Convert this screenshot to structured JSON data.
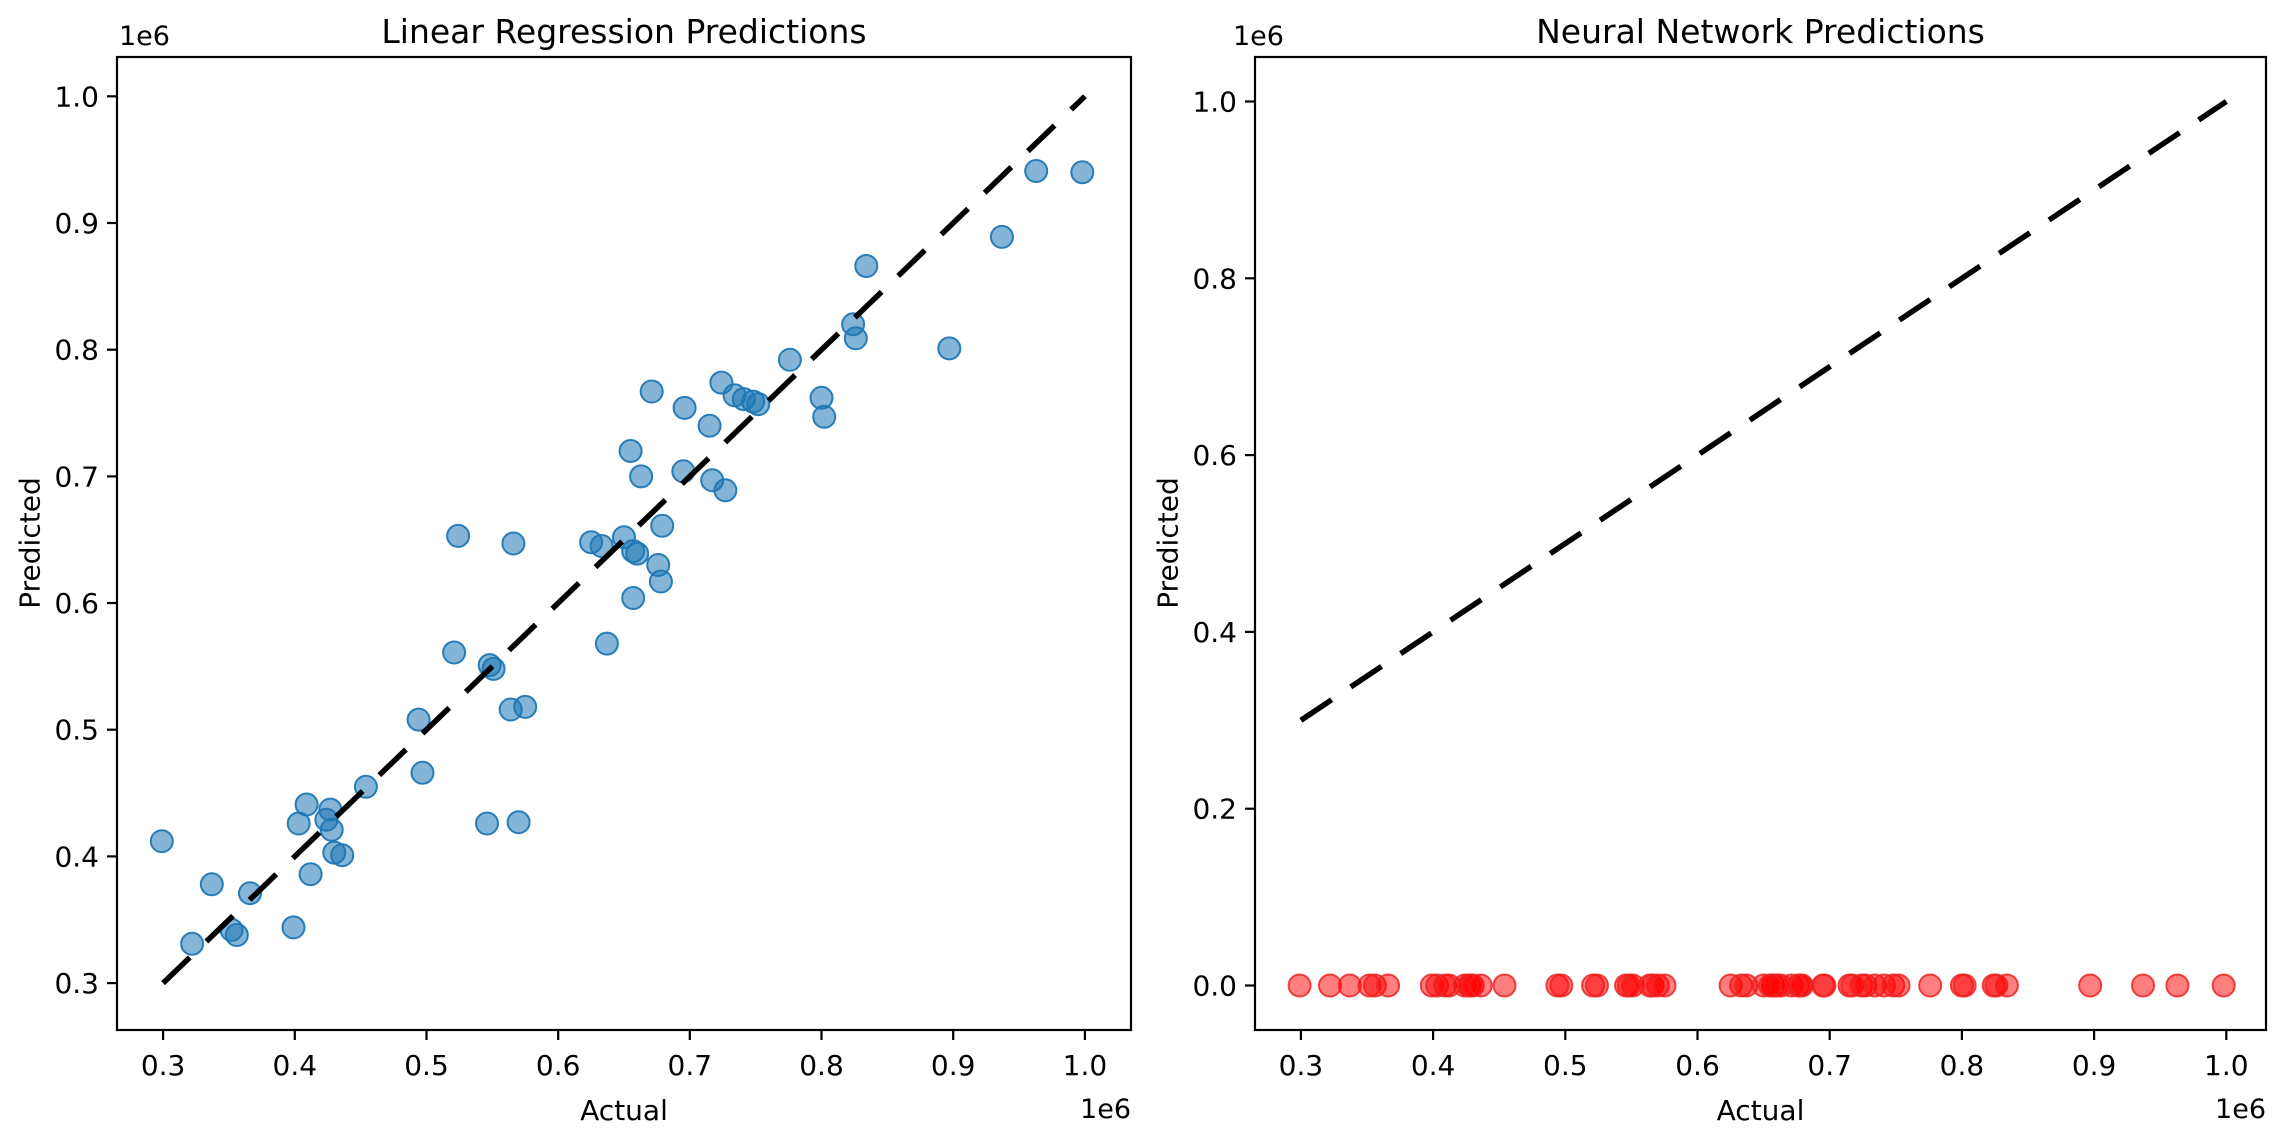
{
  "figure": {
    "background": "#ffffff"
  },
  "chart_data": [
    {
      "type": "scatter",
      "title": "Linear Regression Predictions",
      "xlabel": "Actual",
      "ylabel": "Predicted",
      "x_offset_text": "1e6",
      "y_offset_text": "1e6",
      "units_multiplier": 1000000,
      "xlim": [
        0.265,
        1.035
      ],
      "ylim": [
        0.263,
        1.031
      ],
      "grid": false,
      "x_ticks": [
        0.3,
        0.4,
        0.5,
        0.6,
        0.7,
        0.8,
        0.9,
        1.0
      ],
      "x_tick_labels": [
        "0.3",
        "0.4",
        "0.5",
        "0.6",
        "0.7",
        "0.8",
        "0.9",
        "1.0"
      ],
      "y_ticks": [
        0.3,
        0.4,
        0.5,
        0.6,
        0.7,
        0.8,
        0.9,
        1.0
      ],
      "y_tick_labels": [
        "0.3",
        "0.4",
        "0.5",
        "0.6",
        "0.7",
        "0.8",
        "0.9",
        "1.0"
      ],
      "identity_line": {
        "x": [
          0.3,
          1.0
        ],
        "y": [
          0.3,
          1.0
        ],
        "style": "dashed",
        "color": "#000000"
      },
      "series": [
        {
          "name": "linear-regression-predictions",
          "color": "#1f77b4",
          "fill_opacity": 0.55,
          "edge_color": "#1f77b4",
          "edge_opacity": 0.95,
          "marker_radius": 11,
          "points": [
            [
              0.299,
              0.412
            ],
            [
              0.322,
              0.331
            ],
            [
              0.337,
              0.378
            ],
            [
              0.352,
              0.342
            ],
            [
              0.356,
              0.338
            ],
            [
              0.366,
              0.371
            ],
            [
              0.399,
              0.344
            ],
            [
              0.403,
              0.426
            ],
            [
              0.409,
              0.441
            ],
            [
              0.412,
              0.386
            ],
            [
              0.424,
              0.429
            ],
            [
              0.427,
              0.437
            ],
            [
              0.428,
              0.421
            ],
            [
              0.43,
              0.403
            ],
            [
              0.436,
              0.401
            ],
            [
              0.454,
              0.455
            ],
            [
              0.494,
              0.508
            ],
            [
              0.497,
              0.466
            ],
            [
              0.521,
              0.561
            ],
            [
              0.524,
              0.653
            ],
            [
              0.546,
              0.426
            ],
            [
              0.548,
              0.551
            ],
            [
              0.551,
              0.548
            ],
            [
              0.564,
              0.516
            ],
            [
              0.566,
              0.647
            ],
            [
              0.57,
              0.427
            ],
            [
              0.575,
              0.518
            ],
            [
              0.625,
              0.648
            ],
            [
              0.633,
              0.645
            ],
            [
              0.637,
              0.568
            ],
            [
              0.65,
              0.652
            ],
            [
              0.657,
              0.641
            ],
            [
              0.657,
              0.604
            ],
            [
              0.66,
              0.639
            ],
            [
              0.663,
              0.7
            ],
            [
              0.655,
              0.72
            ],
            [
              0.671,
              0.767
            ],
            [
              0.676,
              0.63
            ],
            [
              0.678,
              0.617
            ],
            [
              0.679,
              0.661
            ],
            [
              0.695,
              0.704
            ],
            [
              0.696,
              0.754
            ],
            [
              0.715,
              0.74
            ],
            [
              0.717,
              0.697
            ],
            [
              0.724,
              0.774
            ],
            [
              0.727,
              0.689
            ],
            [
              0.734,
              0.764
            ],
            [
              0.741,
              0.761
            ],
            [
              0.748,
              0.759
            ],
            [
              0.752,
              0.757
            ],
            [
              0.776,
              0.792
            ],
            [
              0.8,
              0.762
            ],
            [
              0.802,
              0.747
            ],
            [
              0.824,
              0.82
            ],
            [
              0.826,
              0.809
            ],
            [
              0.834,
              0.866
            ],
            [
              0.897,
              0.801
            ],
            [
              0.937,
              0.889
            ],
            [
              0.963,
              0.941
            ],
            [
              0.998,
              0.94
            ]
          ]
        }
      ]
    },
    {
      "type": "scatter",
      "title": "Neural Network Predictions",
      "xlabel": "Actual",
      "ylabel": "Predicted",
      "x_offset_text": "1e6",
      "y_offset_text": "1e6",
      "units_multiplier": 1000000,
      "xlim": [
        0.2653,
        1.03
      ],
      "ylim": [
        -0.0503,
        1.0503
      ],
      "grid": false,
      "x_ticks": [
        0.3,
        0.4,
        0.5,
        0.6,
        0.7,
        0.8,
        0.9,
        1.0
      ],
      "x_tick_labels": [
        "0.3",
        "0.4",
        "0.5",
        "0.6",
        "0.7",
        "0.8",
        "0.9",
        "1.0"
      ],
      "y_ticks": [
        0.0,
        0.2,
        0.4,
        0.6,
        0.8,
        1.0
      ],
      "y_tick_labels": [
        "0.0",
        "0.2",
        "0.4",
        "0.6",
        "0.8",
        "1.0"
      ],
      "identity_line": {
        "x": [
          0.3,
          1.0
        ],
        "y": [
          0.3,
          1.0
        ],
        "style": "dashed",
        "color": "#000000"
      },
      "series": [
        {
          "name": "neural-network-predictions",
          "color": "#ff0000",
          "fill_opacity": 0.5,
          "edge_color": "#ee2222",
          "edge_opacity": 0.85,
          "marker_radius": 11,
          "points": [
            [
              0.299,
              0.0
            ],
            [
              0.322,
              0.0
            ],
            [
              0.337,
              0.0
            ],
            [
              0.352,
              0.0
            ],
            [
              0.356,
              0.0
            ],
            [
              0.366,
              0.0
            ],
            [
              0.399,
              0.0
            ],
            [
              0.403,
              0.0
            ],
            [
              0.409,
              0.0
            ],
            [
              0.412,
              0.0
            ],
            [
              0.424,
              0.0
            ],
            [
              0.427,
              0.0
            ],
            [
              0.428,
              0.0
            ],
            [
              0.43,
              0.0
            ],
            [
              0.436,
              0.0
            ],
            [
              0.454,
              0.0
            ],
            [
              0.494,
              0.0
            ],
            [
              0.497,
              0.0
            ],
            [
              0.521,
              0.0
            ],
            [
              0.524,
              0.0
            ],
            [
              0.546,
              0.0
            ],
            [
              0.548,
              0.0
            ],
            [
              0.551,
              0.0
            ],
            [
              0.564,
              0.0
            ],
            [
              0.566,
              0.0
            ],
            [
              0.57,
              0.0
            ],
            [
              0.575,
              0.0
            ],
            [
              0.625,
              0.0
            ],
            [
              0.633,
              0.0
            ],
            [
              0.637,
              0.0
            ],
            [
              0.65,
              0.0
            ],
            [
              0.657,
              0.0
            ],
            [
              0.657,
              0.0
            ],
            [
              0.66,
              0.0
            ],
            [
              0.663,
              0.0
            ],
            [
              0.655,
              0.0
            ],
            [
              0.671,
              0.0
            ],
            [
              0.676,
              0.0
            ],
            [
              0.678,
              0.0
            ],
            [
              0.679,
              0.0
            ],
            [
              0.695,
              0.0
            ],
            [
              0.696,
              0.0
            ],
            [
              0.715,
              0.0
            ],
            [
              0.717,
              0.0
            ],
            [
              0.724,
              0.0
            ],
            [
              0.727,
              0.0
            ],
            [
              0.734,
              0.0
            ],
            [
              0.741,
              0.0
            ],
            [
              0.748,
              0.0
            ],
            [
              0.752,
              0.0
            ],
            [
              0.776,
              0.0
            ],
            [
              0.8,
              0.0
            ],
            [
              0.802,
              0.0
            ],
            [
              0.824,
              0.0
            ],
            [
              0.826,
              0.0
            ],
            [
              0.834,
              0.0
            ],
            [
              0.897,
              0.0
            ],
            [
              0.937,
              0.0
            ],
            [
              0.963,
              0.0
            ],
            [
              0.998,
              0.0
            ]
          ]
        }
      ]
    }
  ]
}
